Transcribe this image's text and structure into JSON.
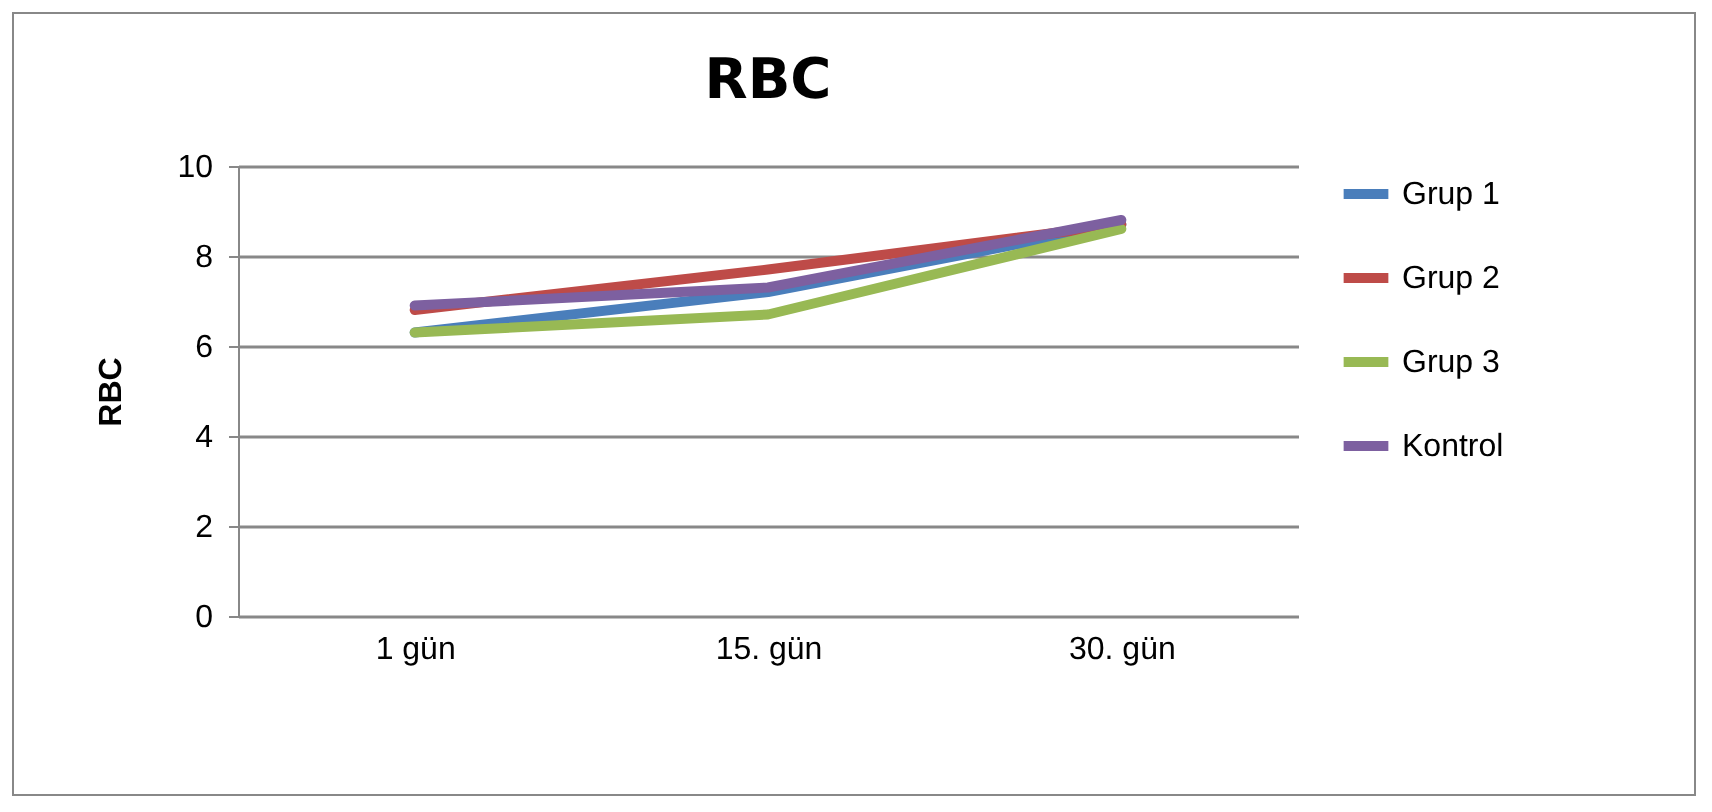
{
  "chart_data": {
    "type": "line",
    "title": "RBC",
    "ylabel": "RBC",
    "categories": [
      "1 gün",
      "15. gün",
      "30. gün"
    ],
    "series": [
      {
        "name": "Grup 1",
        "color": "#4a7ebb",
        "values": [
          6.3,
          7.2,
          8.7
        ]
      },
      {
        "name": "Grup 2",
        "color": "#be4b48",
        "values": [
          6.8,
          7.7,
          8.7
        ]
      },
      {
        "name": "Grup 3",
        "color": "#98b954",
        "values": [
          6.3,
          6.7,
          8.6
        ]
      },
      {
        "name": "Kontrol",
        "color": "#7d60a0",
        "values": [
          6.9,
          7.3,
          8.8
        ]
      }
    ],
    "ylim": [
      0,
      10
    ],
    "yticks": [
      0,
      2,
      4,
      6,
      8,
      10
    ],
    "grid": "y",
    "legend": "right",
    "marker": "none",
    "line_style": "solid"
  }
}
